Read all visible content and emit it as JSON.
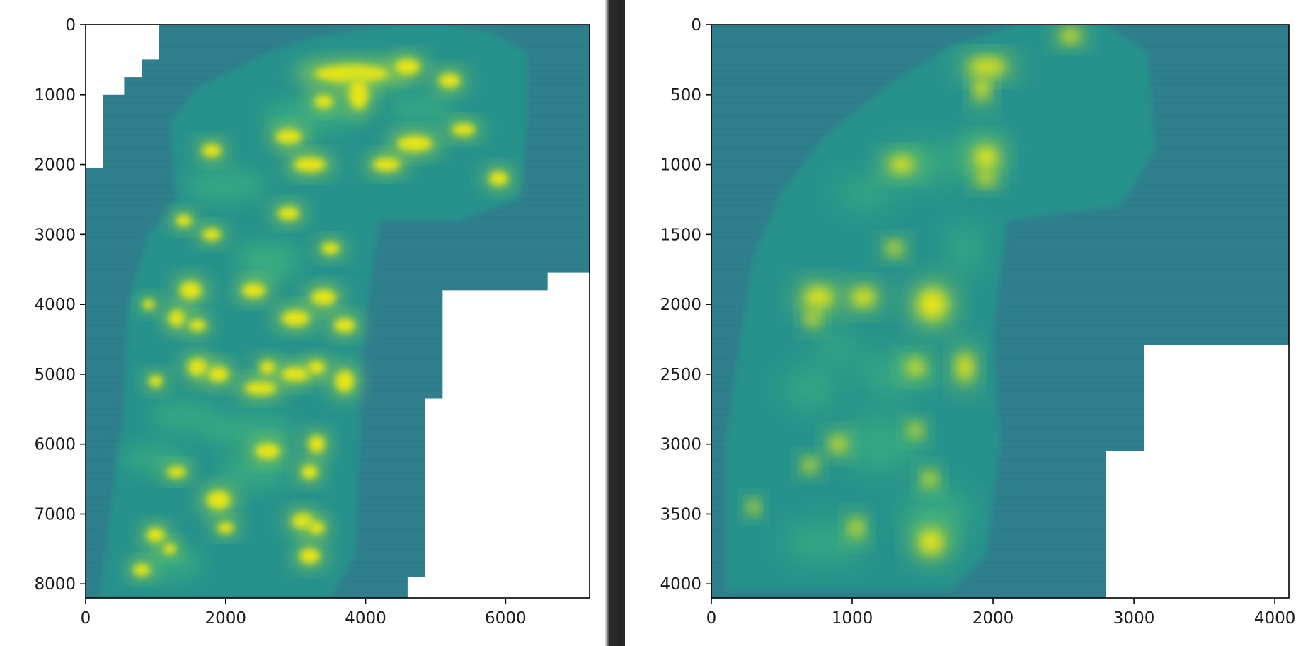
{
  "colors": {
    "background_field": "#2f7f8c",
    "fragment_mid": "#26928c",
    "fragment_hi": "#42b97a",
    "ink": "#e7e419",
    "ink_soft": "#a9dc3f",
    "frame": "#000000"
  },
  "chart_data": [
    {
      "type": "heatmap",
      "colormap": "viridis",
      "xlabel": "",
      "ylabel": "",
      "xlim": [
        0,
        7200
      ],
      "ylim": [
        8200,
        0
      ],
      "x_ticks": [
        0,
        2000,
        4000,
        6000
      ],
      "x_tick_labels": [
        "0",
        "2000",
        "4000",
        "6000"
      ],
      "y_ticks": [
        0,
        1000,
        2000,
        3000,
        4000,
        5000,
        6000,
        7000,
        8000
      ],
      "y_tick_labels": [
        "0",
        "1000",
        "2000",
        "3000",
        "4000",
        "5000",
        "6000",
        "7000",
        "8000"
      ],
      "grid": false,
      "legend": "none",
      "masked_regions": [
        [
          [
            0,
            0
          ],
          [
            1050,
            0
          ],
          [
            1050,
            500
          ],
          [
            800,
            500
          ],
          [
            800,
            750
          ],
          [
            550,
            750
          ],
          [
            550,
            1000
          ],
          [
            250,
            1000
          ],
          [
            250,
            2050
          ],
          [
            0,
            2050
          ]
        ],
        [
          [
            5100,
            3800
          ],
          [
            6600,
            3800
          ],
          [
            6600,
            3550
          ],
          [
            7200,
            3550
          ],
          [
            7200,
            8200
          ],
          [
            4600,
            8200
          ],
          [
            4600,
            7900
          ],
          [
            4850,
            7900
          ],
          [
            4850,
            5350
          ],
          [
            5100,
            5350
          ]
        ]
      ],
      "fragment_outline": [
        [
          1300,
          2500
        ],
        [
          1200,
          1400
        ],
        [
          1600,
          900
        ],
        [
          2600,
          400
        ],
        [
          3200,
          200
        ],
        [
          4000,
          50
        ],
        [
          5000,
          0
        ],
        [
          5800,
          100
        ],
        [
          6300,
          400
        ],
        [
          6300,
          1500
        ],
        [
          6200,
          2500
        ],
        [
          5300,
          2800
        ],
        [
          4200,
          2800
        ],
        [
          4100,
          3400
        ],
        [
          3950,
          4700
        ],
        [
          3900,
          6300
        ],
        [
          3850,
          7600
        ],
        [
          3500,
          8200
        ],
        [
          200,
          8200
        ],
        [
          350,
          7000
        ],
        [
          550,
          5500
        ],
        [
          600,
          4000
        ],
        [
          900,
          3000
        ]
      ],
      "ink_blobs": [
        [
          3800,
          700,
          700,
          160
        ],
        [
          3900,
          1000,
          170,
          270
        ],
        [
          4600,
          600,
          230,
          140
        ],
        [
          5200,
          800,
          200,
          130
        ],
        [
          3400,
          1100,
          180,
          120
        ],
        [
          2900,
          1600,
          240,
          130
        ],
        [
          4700,
          1700,
          330,
          140
        ],
        [
          5400,
          1500,
          220,
          110
        ],
        [
          3200,
          2000,
          300,
          130
        ],
        [
          4300,
          2000,
          260,
          120
        ],
        [
          5900,
          2200,
          180,
          130
        ],
        [
          1800,
          1800,
          180,
          120
        ],
        [
          1400,
          2800,
          150,
          110
        ],
        [
          2900,
          2700,
          200,
          120
        ],
        [
          1800,
          3000,
          170,
          110
        ],
        [
          3500,
          3200,
          170,
          110
        ],
        [
          1500,
          3800,
          200,
          160
        ],
        [
          1300,
          4200,
          150,
          150
        ],
        [
          2400,
          3800,
          220,
          130
        ],
        [
          3000,
          4200,
          260,
          140
        ],
        [
          3400,
          3900,
          230,
          140
        ],
        [
          3700,
          4300,
          200,
          130
        ],
        [
          1600,
          4300,
          160,
          110
        ],
        [
          900,
          4000,
          110,
          100
        ],
        [
          1600,
          4900,
          180,
          160
        ],
        [
          1900,
          5000,
          190,
          140
        ],
        [
          2500,
          5200,
          300,
          120
        ],
        [
          2600,
          4900,
          150,
          120
        ],
        [
          3000,
          5000,
          260,
          130
        ],
        [
          3300,
          4900,
          160,
          120
        ],
        [
          3700,
          5100,
          170,
          200
        ],
        [
          1000,
          5100,
          130,
          110
        ],
        [
          2600,
          6100,
          230,
          140
        ],
        [
          3300,
          6000,
          150,
          160
        ],
        [
          3200,
          6400,
          150,
          130
        ],
        [
          1300,
          6400,
          180,
          100
        ],
        [
          1900,
          6800,
          220,
          170
        ],
        [
          3100,
          7100,
          200,
          140
        ],
        [
          3300,
          7200,
          150,
          110
        ],
        [
          1000,
          7300,
          170,
          130
        ],
        [
          1200,
          7500,
          120,
          100
        ],
        [
          2000,
          7200,
          160,
          100
        ],
        [
          3200,
          7600,
          190,
          140
        ],
        [
          800,
          7800,
          160,
          110
        ]
      ],
      "soft_blobs": [
        [
          2000,
          2300,
          600,
          240
        ],
        [
          2600,
          3300,
          500,
          200
        ],
        [
          1000,
          6200,
          500,
          200
        ],
        [
          2400,
          6400,
          500,
          260
        ],
        [
          1200,
          7700,
          500,
          240
        ],
        [
          3200,
          1300,
          700,
          240
        ],
        [
          4800,
          1200,
          500,
          200
        ],
        [
          2300,
          5800,
          700,
          250
        ],
        [
          2600,
          3500,
          400,
          200
        ],
        [
          1400,
          5600,
          500,
          220
        ]
      ]
    },
    {
      "type": "heatmap",
      "colormap": "viridis",
      "xlabel": "",
      "ylabel": "",
      "xlim": [
        0,
        4100
      ],
      "ylim": [
        4100,
        0
      ],
      "x_ticks": [
        0,
        1000,
        2000,
        3000,
        4000
      ],
      "x_tick_labels": [
        "0",
        "1000",
        "2000",
        "3000",
        "4000"
      ],
      "y_ticks": [
        0,
        500,
        1000,
        1500,
        2000,
        2500,
        3000,
        3500,
        4000
      ],
      "y_tick_labels": [
        "0",
        "500",
        "1000",
        "1500",
        "2000",
        "2500",
        "3000",
        "3500",
        "4000"
      ],
      "grid": false,
      "legend": "none",
      "masked_regions": [
        [
          [
            3070,
            2290
          ],
          [
            4100,
            2290
          ],
          [
            4100,
            4100
          ],
          [
            2800,
            4100
          ],
          [
            2800,
            3050
          ],
          [
            3070,
            3050
          ]
        ]
      ],
      "fragment_outline": [
        [
          300,
          1650
        ],
        [
          500,
          1200
        ],
        [
          800,
          800
        ],
        [
          1300,
          400
        ],
        [
          1700,
          150
        ],
        [
          2200,
          0
        ],
        [
          2800,
          0
        ],
        [
          3100,
          200
        ],
        [
          3150,
          900
        ],
        [
          2900,
          1300
        ],
        [
          2100,
          1400
        ],
        [
          2000,
          2200
        ],
        [
          2050,
          3000
        ],
        [
          1950,
          3800
        ],
        [
          1700,
          4050
        ],
        [
          100,
          4050
        ],
        [
          100,
          3000
        ],
        [
          200,
          2300
        ]
      ],
      "ink_blobs": [
        [
          1960,
          300,
          170,
          70
        ],
        [
          1920,
          460,
          60,
          100
        ],
        [
          2550,
          80,
          90,
          60
        ],
        [
          1950,
          950,
          100,
          100
        ],
        [
          1350,
          1000,
          110,
          70
        ],
        [
          1950,
          1100,
          70,
          60
        ],
        [
          760,
          1950,
          130,
          90
        ],
        [
          720,
          2100,
          60,
          70
        ],
        [
          1080,
          1950,
          110,
          80
        ],
        [
          1570,
          2000,
          130,
          140
        ],
        [
          1800,
          2450,
          70,
          130
        ],
        [
          1450,
          2450,
          80,
          70
        ],
        [
          1550,
          3250,
          60,
          70
        ],
        [
          1030,
          3600,
          60,
          80
        ],
        [
          1560,
          3700,
          110,
          110
        ],
        [
          900,
          3000,
          70,
          70
        ],
        [
          1300,
          1600,
          70,
          60
        ],
        [
          1450,
          2900,
          60,
          60
        ],
        [
          700,
          3150,
          60,
          60
        ],
        [
          300,
          3450,
          50,
          60
        ]
      ],
      "soft_blobs": [
        [
          1500,
          1000,
          300,
          150
        ],
        [
          1900,
          900,
          180,
          140
        ],
        [
          1100,
          1200,
          220,
          120
        ],
        [
          1300,
          2500,
          280,
          160
        ],
        [
          700,
          2600,
          200,
          160
        ],
        [
          1200,
          3000,
          300,
          200
        ],
        [
          800,
          3700,
          300,
          150
        ],
        [
          1800,
          1600,
          130,
          180
        ],
        [
          1600,
          3500,
          250,
          200
        ],
        [
          900,
          2300,
          150,
          130
        ]
      ]
    }
  ]
}
